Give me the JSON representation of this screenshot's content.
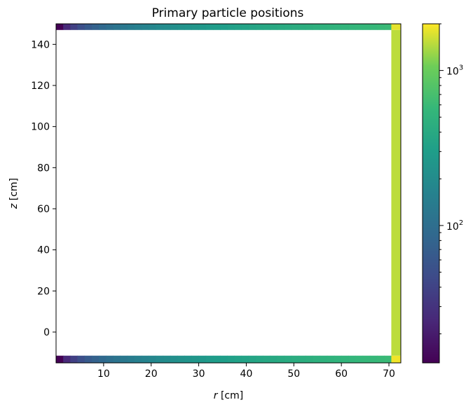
{
  "chart_data": {
    "type": "heatmap",
    "title": "Primary particle positions",
    "xlabel_var": "r",
    "xlabel_unit": "[cm]",
    "ylabel_var": "z",
    "ylabel_unit": "[cm]",
    "xlim": [
      0,
      72.5
    ],
    "ylim": [
      -15,
      150
    ],
    "x_ticks": [
      10,
      20,
      30,
      40,
      50,
      60,
      70
    ],
    "y_ticks": [
      0,
      20,
      40,
      60,
      80,
      100,
      120,
      140
    ],
    "grid": false,
    "colormap": "viridis",
    "colorbar": {
      "scale": "log",
      "range": [
        13,
        2000
      ],
      "major_ticks": [
        {
          "value": 100,
          "base": "10",
          "exp": "2"
        },
        {
          "value": 1000,
          "base": "10",
          "exp": "3"
        }
      ],
      "minor_ticks": [
        20,
        30,
        40,
        50,
        60,
        70,
        80,
        90,
        200,
        300,
        400,
        500,
        600,
        700,
        800,
        900,
        2000
      ]
    },
    "bin_edges_r": [
      0,
      1.5,
      3,
      4.5,
      6,
      7.5,
      9,
      10.5,
      12,
      13.5,
      15,
      16.5,
      18,
      19.5,
      21,
      22.5,
      24,
      25.5,
      27,
      28.5,
      30,
      31.5,
      33,
      34.5,
      36,
      37.5,
      39,
      40.5,
      42,
      43.5,
      45,
      46.5,
      48,
      49.5,
      51,
      52.5,
      54,
      55.5,
      57,
      58.5,
      60,
      61.5,
      63,
      64.5,
      66,
      67.5,
      69,
      70.5,
      72.5
    ],
    "top_row": {
      "z_range": [
        147,
        150
      ],
      "values": [
        13,
        25,
        38,
        51,
        64,
        76,
        89,
        102,
        114,
        127,
        140,
        153,
        165,
        178,
        191,
        204,
        216,
        229,
        242,
        255,
        267,
        280,
        293,
        305,
        318,
        331,
        344,
        356,
        369,
        382,
        394,
        407,
        420,
        433,
        445,
        458,
        471,
        484,
        496,
        509,
        522,
        534,
        547,
        560,
        573,
        585,
        598,
        1800
      ]
    },
    "bottom_row": {
      "z_range": [
        -15,
        -11.5
      ],
      "values": [
        12,
        25,
        38,
        51,
        64,
        76,
        89,
        102,
        114,
        127,
        140,
        153,
        165,
        178,
        191,
        204,
        216,
        229,
        242,
        255,
        267,
        280,
        293,
        305,
        318,
        331,
        344,
        356,
        369,
        382,
        394,
        407,
        420,
        433,
        445,
        458,
        471,
        484,
        496,
        509,
        522,
        534,
        547,
        560,
        573,
        585,
        598,
        1900
      ]
    },
    "side_column": {
      "r_range": [
        70.5,
        72.5
      ],
      "z_range": [
        -11.5,
        147
      ],
      "value": 1500
    }
  }
}
